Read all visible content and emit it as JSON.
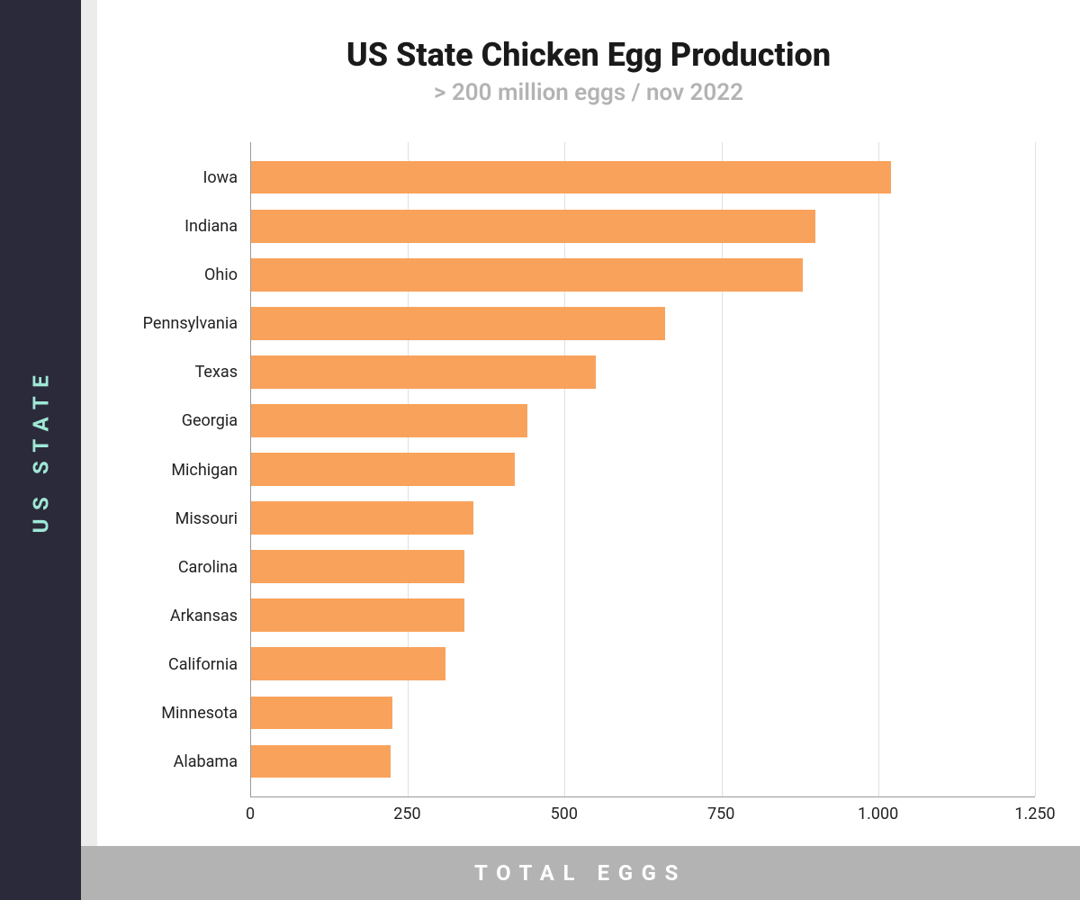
{
  "sidebar": {
    "label": "US STATE",
    "bg_color": "#2b2a3a",
    "text_color": "#9fe8d6"
  },
  "footer": {
    "label": "TOTAL EGGS",
    "bg_color": "#b3b3b3",
    "text_color": "#ffffff"
  },
  "chart": {
    "type": "bar-horizontal",
    "title": "US State Chicken Egg Production",
    "title_fontsize": 36,
    "title_color": "#1a1a1a",
    "subtitle": "> 200 million eggs / nov 2022",
    "subtitle_fontsize": 26,
    "subtitle_color": "#b3b3b3",
    "background_color": "#ffffff",
    "gutter_color": "#ececec",
    "bar_color": "#f9a25c",
    "grid_color": "#e0e0e0",
    "axis_color": "#999999",
    "label_fontsize": 18,
    "xmin": 0,
    "xmax": 1250,
    "xticks": [
      0,
      250,
      500,
      750,
      1000,
      1250
    ],
    "xtick_labels": [
      "0",
      "250",
      "500",
      "750",
      "1.000",
      "1.250"
    ],
    "categories": [
      "Iowa",
      "Indiana",
      "Ohio",
      "Pennsylvania",
      "Texas",
      "Georgia",
      "Michigan",
      "Missouri",
      "Carolina",
      "Arkansas",
      "California",
      "Minnesota",
      "Alabama"
    ],
    "values": [
      1020,
      900,
      880,
      660,
      550,
      440,
      420,
      355,
      340,
      340,
      310,
      225,
      222
    ]
  }
}
